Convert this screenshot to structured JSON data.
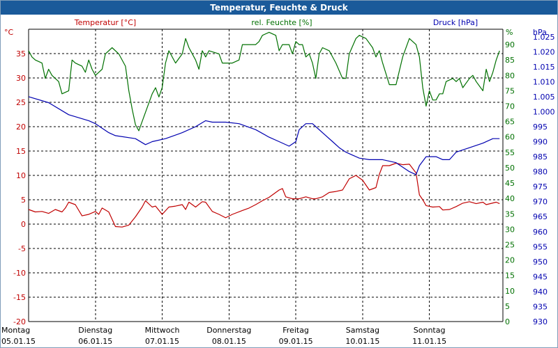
{
  "window": {
    "title": "Temperatur, Feuchte & Druck"
  },
  "chart_data": {
    "type": "line",
    "title": "Temperatur, Feuchte & Druck",
    "grid": true,
    "colors": {
      "temperature": "#c00000",
      "humidity": "#007000",
      "pressure": "#0000b0",
      "grid": "#000000"
    },
    "x": {
      "min": 0,
      "max": 7.1,
      "unit": "days from first tick"
    },
    "x_ticks": [
      {
        "day": "Montag",
        "date": "05.01.15"
      },
      {
        "day": "Dienstag",
        "date": "06.01.15"
      },
      {
        "day": "Mittwoch",
        "date": "07.01.15"
      },
      {
        "day": "Donnerstag",
        "date": "08.01.15"
      },
      {
        "day": "Freitag",
        "date": "09.01.15"
      },
      {
        "day": "Samstag",
        "date": "10.01.15"
      },
      {
        "day": "Sonntag",
        "date": "11.01.15"
      }
    ],
    "axes": {
      "temperature": {
        "label": "Temperatur [°C]",
        "unit": "°C",
        "ylim": [
          -20,
          40
        ],
        "ticks": [
          -20,
          -15,
          -10,
          -5,
          0,
          5,
          10,
          15,
          20,
          25,
          30,
          35
        ]
      },
      "humidity": {
        "label": "rel. Feuchte [%]",
        "unit": "%",
        "ylim": [
          0,
          95
        ],
        "ticks": [
          0,
          5,
          10,
          15,
          20,
          25,
          30,
          35,
          40,
          45,
          50,
          55,
          60,
          65,
          70,
          75,
          80,
          85,
          90
        ]
      },
      "pressure": {
        "label": "Druck [hPa]",
        "unit": "hPa",
        "ylim": [
          930,
          1027.5
        ],
        "ticks": [
          "930",
          "935",
          "940",
          "945",
          "950",
          "955",
          "960",
          "965",
          "970",
          "975",
          "980",
          "985",
          "990",
          "995",
          "1.000",
          "1.005",
          "1.010",
          "1.015",
          "1.020",
          "1.025"
        ]
      }
    },
    "series": [
      {
        "key": "temperature",
        "name": "Temperatur [°C]",
        "axis": "temperature",
        "points": [
          [
            0,
            3.0
          ],
          [
            0.1,
            2.5
          ],
          [
            0.2,
            2.6
          ],
          [
            0.3,
            2.2
          ],
          [
            0.4,
            3.0
          ],
          [
            0.5,
            2.5
          ],
          [
            0.55,
            3.3
          ],
          [
            0.6,
            4.5
          ],
          [
            0.7,
            4.0
          ],
          [
            0.8,
            1.7
          ],
          [
            0.9,
            2.0
          ],
          [
            1.0,
            2.6
          ],
          [
            1.05,
            2.0
          ],
          [
            1.1,
            3.3
          ],
          [
            1.2,
            2.5
          ],
          [
            1.25,
            1.0
          ],
          [
            1.3,
            -0.5
          ],
          [
            1.4,
            -0.6
          ],
          [
            1.5,
            -0.2
          ],
          [
            1.6,
            1.5
          ],
          [
            1.7,
            3.5
          ],
          [
            1.75,
            4.8
          ],
          [
            1.85,
            3.5
          ],
          [
            1.9,
            3.7
          ],
          [
            2.0,
            2.0
          ],
          [
            2.1,
            3.5
          ],
          [
            2.2,
            3.7
          ],
          [
            2.3,
            4.0
          ],
          [
            2.35,
            3.0
          ],
          [
            2.4,
            4.5
          ],
          [
            2.5,
            3.5
          ],
          [
            2.6,
            4.6
          ],
          [
            2.65,
            4.5
          ],
          [
            2.75,
            2.6
          ],
          [
            2.85,
            2.0
          ],
          [
            2.95,
            1.3
          ],
          [
            3.05,
            2.0
          ],
          [
            3.2,
            2.8
          ],
          [
            3.3,
            3.3
          ],
          [
            3.4,
            4.0
          ],
          [
            3.5,
            4.8
          ],
          [
            3.6,
            5.5
          ],
          [
            3.65,
            6.0
          ],
          [
            3.75,
            7.0
          ],
          [
            3.8,
            7.3
          ],
          [
            3.85,
            5.6
          ],
          [
            3.95,
            5.2
          ],
          [
            4.05,
            5.2
          ],
          [
            4.15,
            5.6
          ],
          [
            4.25,
            5.2
          ],
          [
            4.3,
            5.2
          ],
          [
            4.4,
            5.6
          ],
          [
            4.5,
            6.5
          ],
          [
            4.6,
            6.7
          ],
          [
            4.7,
            7.0
          ],
          [
            4.8,
            9.3
          ],
          [
            4.9,
            10.0
          ],
          [
            5.0,
            9.0
          ],
          [
            5.1,
            7.0
          ],
          [
            5.2,
            7.5
          ],
          [
            5.25,
            10.2
          ],
          [
            5.3,
            12.0
          ],
          [
            5.4,
            12.0
          ],
          [
            5.5,
            12.5
          ],
          [
            5.6,
            12.2
          ],
          [
            5.7,
            12.3
          ],
          [
            5.8,
            10.5
          ],
          [
            5.85,
            6.0
          ],
          [
            5.9,
            5.0
          ],
          [
            5.95,
            3.8
          ],
          [
            6.05,
            3.5
          ],
          [
            6.15,
            3.6
          ],
          [
            6.2,
            2.9
          ],
          [
            6.3,
            3.0
          ],
          [
            6.4,
            3.6
          ],
          [
            6.5,
            4.3
          ],
          [
            6.6,
            4.6
          ],
          [
            6.7,
            4.2
          ],
          [
            6.8,
            4.5
          ],
          [
            6.85,
            4.0
          ],
          [
            7.0,
            4.5
          ],
          [
            7.05,
            4.2
          ]
        ]
      },
      {
        "key": "humidity",
        "name": "rel. Feuchte [%]",
        "axis": "humidity",
        "points": [
          [
            0,
            88
          ],
          [
            0.05,
            86
          ],
          [
            0.1,
            85
          ],
          [
            0.2,
            84
          ],
          [
            0.25,
            79
          ],
          [
            0.3,
            82
          ],
          [
            0.35,
            80
          ],
          [
            0.45,
            78
          ],
          [
            0.5,
            74
          ],
          [
            0.6,
            75
          ],
          [
            0.65,
            85
          ],
          [
            0.7,
            84
          ],
          [
            0.8,
            83
          ],
          [
            0.85,
            81
          ],
          [
            0.9,
            85
          ],
          [
            0.95,
            82
          ],
          [
            1.0,
            80
          ],
          [
            1.05,
            81
          ],
          [
            1.1,
            82
          ],
          [
            1.15,
            87
          ],
          [
            1.25,
            89
          ],
          [
            1.35,
            87
          ],
          [
            1.45,
            83
          ],
          [
            1.5,
            75
          ],
          [
            1.55,
            69
          ],
          [
            1.6,
            64
          ],
          [
            1.65,
            62
          ],
          [
            1.7,
            65
          ],
          [
            1.8,
            71
          ],
          [
            1.85,
            74
          ],
          [
            1.9,
            76
          ],
          [
            1.95,
            73
          ],
          [
            2.0,
            76
          ],
          [
            2.05,
            84
          ],
          [
            2.1,
            88
          ],
          [
            2.2,
            84
          ],
          [
            2.3,
            87
          ],
          [
            2.35,
            92
          ],
          [
            2.4,
            89
          ],
          [
            2.5,
            85
          ],
          [
            2.55,
            82
          ],
          [
            2.6,
            88
          ],
          [
            2.65,
            86
          ],
          [
            2.7,
            88
          ],
          [
            2.85,
            87
          ],
          [
            2.9,
            84
          ],
          [
            3.05,
            84
          ],
          [
            3.15,
            85
          ],
          [
            3.2,
            90
          ],
          [
            3.3,
            90
          ],
          [
            3.4,
            90
          ],
          [
            3.45,
            91
          ],
          [
            3.5,
            93
          ],
          [
            3.6,
            94
          ],
          [
            3.7,
            93
          ],
          [
            3.75,
            88
          ],
          [
            3.8,
            90
          ],
          [
            3.9,
            90
          ],
          [
            3.95,
            87
          ],
          [
            4.0,
            91
          ],
          [
            4.05,
            90
          ],
          [
            4.1,
            90
          ],
          [
            4.15,
            86
          ],
          [
            4.2,
            87
          ],
          [
            4.25,
            84
          ],
          [
            4.3,
            79
          ],
          [
            4.35,
            87
          ],
          [
            4.4,
            89
          ],
          [
            4.5,
            88
          ],
          [
            4.6,
            84
          ],
          [
            4.7,
            79
          ],
          [
            4.75,
            79
          ],
          [
            4.8,
            87
          ],
          [
            4.9,
            92
          ],
          [
            4.95,
            93
          ],
          [
            5.05,
            92
          ],
          [
            5.15,
            89
          ],
          [
            5.2,
            86
          ],
          [
            5.25,
            88
          ],
          [
            5.3,
            84
          ],
          [
            5.4,
            77
          ],
          [
            5.5,
            77
          ],
          [
            5.6,
            86
          ],
          [
            5.7,
            92
          ],
          [
            5.8,
            90
          ],
          [
            5.85,
            86
          ],
          [
            5.9,
            76
          ],
          [
            5.95,
            70
          ],
          [
            6.0,
            75
          ],
          [
            6.05,
            72
          ],
          [
            6.1,
            72
          ],
          [
            6.15,
            74
          ],
          [
            6.2,
            74
          ],
          [
            6.25,
            78
          ],
          [
            6.35,
            79
          ],
          [
            6.4,
            78
          ],
          [
            6.45,
            79
          ],
          [
            6.5,
            76
          ],
          [
            6.6,
            79
          ],
          [
            6.65,
            80
          ],
          [
            6.7,
            78
          ],
          [
            6.8,
            75
          ],
          [
            6.85,
            82
          ],
          [
            6.9,
            78
          ],
          [
            6.95,
            81
          ],
          [
            7.0,
            85
          ],
          [
            7.05,
            88
          ]
        ]
      },
      {
        "key": "pressure",
        "name": "Druck [hPa]",
        "axis": "pressure",
        "points": [
          [
            0,
            1005
          ],
          [
            0.3,
            1003
          ],
          [
            0.6,
            999
          ],
          [
            0.9,
            997
          ],
          [
            1.0,
            996
          ],
          [
            1.2,
            993
          ],
          [
            1.3,
            992
          ],
          [
            1.6,
            991
          ],
          [
            1.75,
            989
          ],
          [
            1.85,
            990
          ],
          [
            2.05,
            991
          ],
          [
            2.3,
            993
          ],
          [
            2.5,
            995
          ],
          [
            2.65,
            997
          ],
          [
            2.75,
            996.5
          ],
          [
            2.95,
            996.5
          ],
          [
            3.15,
            996
          ],
          [
            3.4,
            994
          ],
          [
            3.6,
            991.5
          ],
          [
            3.75,
            990
          ],
          [
            3.9,
            988.5
          ],
          [
            4.0,
            990
          ],
          [
            4.05,
            994
          ],
          [
            4.15,
            996
          ],
          [
            4.25,
            996
          ],
          [
            4.3,
            995
          ],
          [
            4.45,
            992
          ],
          [
            4.55,
            990
          ],
          [
            4.65,
            988
          ],
          [
            4.75,
            986.5
          ],
          [
            4.85,
            985.5
          ],
          [
            4.95,
            984.5
          ],
          [
            5.1,
            984
          ],
          [
            5.3,
            984
          ],
          [
            5.5,
            983
          ],
          [
            5.7,
            980
          ],
          [
            5.8,
            979
          ],
          [
            5.85,
            982
          ],
          [
            5.95,
            985
          ],
          [
            6.1,
            985
          ],
          [
            6.2,
            984
          ],
          [
            6.3,
            984
          ],
          [
            6.4,
            986.5
          ],
          [
            6.6,
            988
          ],
          [
            6.8,
            989.5
          ],
          [
            6.95,
            991
          ],
          [
            7.05,
            991
          ]
        ]
      }
    ]
  }
}
